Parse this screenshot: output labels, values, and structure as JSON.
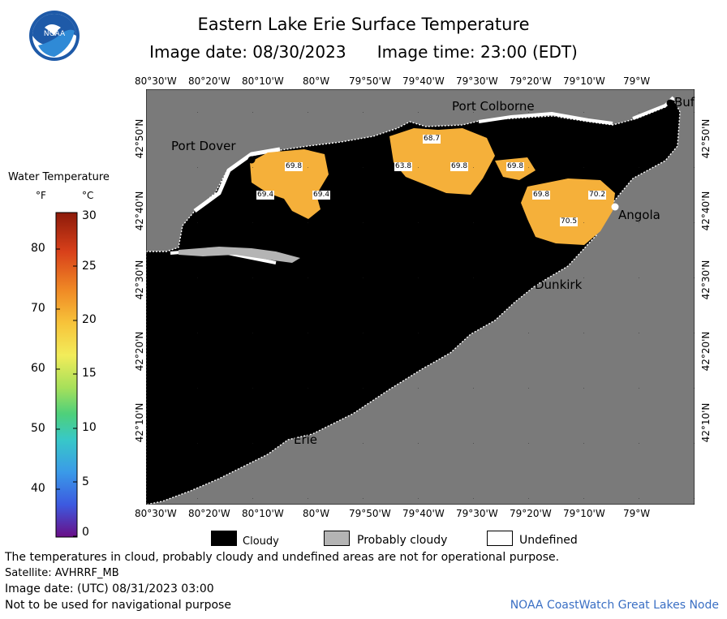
{
  "header": {
    "title": "Eastern Lake Erie Surface Temperature",
    "image_date_label": "Image date: 08/30/2023",
    "image_time_label": "Image time: 23:00 (EDT)",
    "logo_text": "NOAA"
  },
  "map": {
    "lon_ticks": [
      "80°30'W",
      "80°20'W",
      "80°10'W",
      "80°W",
      "79°50'W",
      "79°40'W",
      "79°30'W",
      "79°20'W",
      "79°10'W",
      "79°W"
    ],
    "lat_ticks": [
      "42°50'N",
      "42°40'N",
      "42°30'N",
      "42°20'N",
      "42°10'N"
    ],
    "cities": {
      "port_colborne": "Port Colborne",
      "port_dover": "Port Dover",
      "buffalo": "Buf",
      "angola": "Angola",
      "dunkirk": "Dunkirk",
      "erie": "Erie"
    },
    "temperature_labels": [
      "68.7",
      "69.8",
      "63.8",
      "69.8",
      "69.8",
      "69.4",
      "69.4",
      "69.8",
      "70.2",
      "70.5"
    ],
    "colors": {
      "land": "#7a7a7a",
      "cloud": "#000000",
      "probably_cloudy": "#b4b4b4",
      "undefined": "#ffffff",
      "water_warm": "#f5b03a"
    }
  },
  "legend": {
    "title": "Water Temperature",
    "unit_f": "°F",
    "unit_c": "°C",
    "f_ticks": [
      "80",
      "70",
      "60",
      "50",
      "40"
    ],
    "c_ticks": [
      "30",
      "25",
      "20",
      "15",
      "10",
      "5",
      "0"
    ]
  },
  "key": {
    "cloudy": "Cloudy",
    "probably_cloudy": "Probably cloudy",
    "undefined": "Undefined"
  },
  "footer": {
    "disclaimer": "The temperatures in cloud, probably cloudy and undefined areas are not for operational purpose.",
    "satellite": "Satellite: AVHRRF_MB",
    "utc_date": "Image date: (UTC) 08/31/2023  03:00",
    "nav_warning": "Not to be used for navigational purpose",
    "credit": "NOAA CoastWatch Great Lakes Node"
  }
}
